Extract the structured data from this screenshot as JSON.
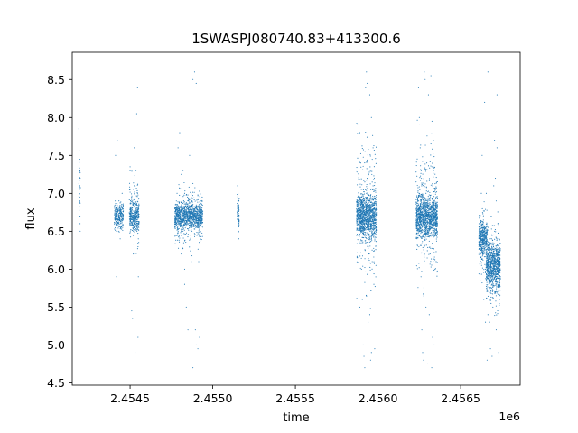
{
  "chart_data": {
    "type": "scatter",
    "title": "1SWASPJ080740.83+413300.6",
    "xlabel": "time",
    "ylabel": "flux",
    "x_offset_label": "1e6",
    "xlim": [
      2454150,
      2456860
    ],
    "ylim": [
      4.47,
      8.86
    ],
    "grid": false,
    "marker_color": "#1f77b4",
    "xticks": [
      {
        "value": 2454500,
        "label": "2.4545"
      },
      {
        "value": 2455000,
        "label": "2.4550"
      },
      {
        "value": 2455500,
        "label": "2.4555"
      },
      {
        "value": 2456000,
        "label": "2.4560"
      },
      {
        "value": 2456500,
        "label": "2.4565"
      }
    ],
    "yticks": [
      {
        "value": 4.5,
        "label": "4.5"
      },
      {
        "value": 5.0,
        "label": "5.0"
      },
      {
        "value": 5.5,
        "label": "5.5"
      },
      {
        "value": 6.0,
        "label": "6.0"
      },
      {
        "value": 6.5,
        "label": "6.5"
      },
      {
        "value": 7.0,
        "label": "7.0"
      },
      {
        "value": 7.5,
        "label": "7.5"
      },
      {
        "value": 8.0,
        "label": "8.0"
      },
      {
        "value": 8.5,
        "label": "8.5"
      }
    ],
    "series": [
      {
        "points": [
          [
            2454190,
            7.85
          ],
          [
            2454195,
            7.45
          ],
          [
            2454195,
            7.3
          ],
          [
            2454196,
            7.1
          ],
          [
            2454196,
            6.9
          ],
          [
            2454197,
            6.7
          ],
          [
            2454197,
            6.6
          ],
          [
            2454198,
            6.5
          ],
          [
            2454198,
            7.2
          ],
          [
            2454410,
            6.9
          ],
          [
            2454415,
            6.8
          ],
          [
            2454420,
            6.7
          ],
          [
            2454425,
            6.6
          ],
          [
            2454430,
            6.5
          ],
          [
            2454412,
            7.5
          ],
          [
            2454418,
            5.9
          ],
          [
            2454422,
            7.7
          ],
          [
            2454440,
            6.75
          ],
          [
            2454445,
            6.65
          ],
          [
            2454450,
            6.85
          ],
          [
            2454455,
            6.55
          ],
          [
            2454440,
            6.4
          ],
          [
            2454452,
            7.0
          ],
          [
            2454500,
            6.8
          ],
          [
            2454505,
            6.7
          ],
          [
            2454510,
            6.6
          ],
          [
            2454515,
            6.9
          ],
          [
            2454520,
            6.5
          ],
          [
            2454525,
            7.1
          ],
          [
            2454500,
            7.35
          ],
          [
            2454520,
            6.2
          ],
          [
            2454510,
            5.45
          ],
          [
            2454515,
            5.35
          ],
          [
            2454525,
            7.6
          ],
          [
            2454530,
            6.75
          ],
          [
            2454535,
            6.85
          ],
          [
            2454540,
            6.65
          ],
          [
            2454545,
            7.0
          ],
          [
            2454550,
            6.4
          ],
          [
            2454535,
            7.3
          ],
          [
            2454540,
            8.05
          ],
          [
            2454545,
            8.4
          ],
          [
            2454550,
            5.9
          ],
          [
            2454548,
            5.1
          ],
          [
            2454530,
            4.9
          ],
          [
            2454780,
            6.9
          ],
          [
            2454790,
            6.7
          ],
          [
            2454800,
            6.6
          ],
          [
            2454810,
            6.8
          ],
          [
            2454820,
            6.5
          ],
          [
            2454830,
            7.0
          ],
          [
            2454840,
            6.75
          ],
          [
            2454850,
            6.85
          ],
          [
            2454860,
            6.55
          ],
          [
            2454870,
            6.95
          ],
          [
            2454880,
            6.65
          ],
          [
            2454890,
            6.7
          ],
          [
            2454900,
            6.8
          ],
          [
            2454910,
            6.6
          ],
          [
            2454920,
            6.75
          ],
          [
            2454930,
            6.9
          ],
          [
            2454790,
            7.6
          ],
          [
            2454800,
            7.8
          ],
          [
            2454810,
            6.2
          ],
          [
            2454820,
            7.3
          ],
          [
            2454830,
            6.0
          ],
          [
            2454840,
            5.5
          ],
          [
            2454850,
            5.2
          ],
          [
            2454860,
            7.5
          ],
          [
            2454870,
            6.1
          ],
          [
            2454880,
            8.5
          ],
          [
            2454890,
            8.6
          ],
          [
            2454900,
            8.45
          ],
          [
            2454880,
            4.7
          ],
          [
            2454900,
            5.0
          ],
          [
            2454910,
            4.95
          ],
          [
            2454920,
            5.1
          ],
          [
            2454895,
            5.2
          ],
          [
            2454810,
            7.25
          ],
          [
            2454830,
            5.8
          ],
          [
            2454915,
            6.1
          ],
          [
            2455150,
            7.1
          ],
          [
            2455152,
            6.9
          ],
          [
            2455154,
            6.7
          ],
          [
            2455156,
            6.5
          ],
          [
            2455158,
            6.4
          ],
          [
            2455151,
            6.8
          ],
          [
            2455155,
            6.6
          ],
          [
            2455153,
            7.0
          ],
          [
            2455880,
            6.9
          ],
          [
            2455890,
            6.7
          ],
          [
            2455900,
            6.5
          ],
          [
            2455910,
            6.8
          ],
          [
            2455920,
            6.6
          ],
          [
            2455930,
            7.0
          ],
          [
            2455940,
            6.75
          ],
          [
            2455950,
            6.85
          ],
          [
            2455960,
            6.55
          ],
          [
            2455970,
            7.1
          ],
          [
            2455980,
            6.65
          ],
          [
            2455885,
            8.1
          ],
          [
            2455890,
            7.8
          ],
          [
            2455895,
            7.4
          ],
          [
            2455900,
            6.0
          ],
          [
            2455905,
            5.6
          ],
          [
            2455910,
            5.0
          ],
          [
            2455915,
            4.85
          ],
          [
            2455920,
            4.7
          ],
          [
            2455925,
            8.4
          ],
          [
            2455930,
            8.6
          ],
          [
            2455935,
            8.45
          ],
          [
            2455940,
            5.3
          ],
          [
            2455945,
            6.2
          ],
          [
            2455950,
            5.4
          ],
          [
            2455955,
            4.8
          ],
          [
            2455960,
            8.0
          ],
          [
            2455965,
            6.1
          ],
          [
            2455970,
            7.6
          ],
          [
            2455975,
            5.8
          ],
          [
            2455980,
            4.95
          ],
          [
            2455890,
            5.5
          ],
          [
            2455950,
            8.3
          ],
          [
            2455960,
            4.9
          ],
          [
            2456240,
            6.9
          ],
          [
            2456250,
            6.7
          ],
          [
            2456260,
            6.5
          ],
          [
            2456270,
            6.8
          ],
          [
            2456280,
            6.6
          ],
          [
            2456290,
            7.0
          ],
          [
            2456300,
            6.75
          ],
          [
            2456310,
            6.85
          ],
          [
            2456320,
            6.55
          ],
          [
            2456330,
            7.1
          ],
          [
            2456340,
            6.65
          ],
          [
            2456350,
            6.8
          ],
          [
            2456245,
            8.4
          ],
          [
            2456250,
            8.0
          ],
          [
            2456255,
            7.6
          ],
          [
            2456260,
            5.9
          ],
          [
            2456265,
            5.2
          ],
          [
            2456270,
            4.9
          ],
          [
            2456275,
            4.8
          ],
          [
            2456280,
            8.6
          ],
          [
            2456285,
            8.5
          ],
          [
            2456290,
            5.5
          ],
          [
            2456295,
            7.4
          ],
          [
            2456300,
            4.75
          ],
          [
            2456305,
            8.3
          ],
          [
            2456310,
            5.4
          ],
          [
            2456315,
            6.2
          ],
          [
            2456320,
            8.55
          ],
          [
            2456325,
            4.7
          ],
          [
            2456330,
            5.1
          ],
          [
            2456335,
            7.7
          ],
          [
            2456340,
            5.0
          ],
          [
            2456345,
            6.0
          ],
          [
            2456620,
            6.5
          ],
          [
            2456625,
            6.4
          ],
          [
            2456630,
            6.3
          ],
          [
            2456635,
            6.6
          ],
          [
            2456640,
            6.2
          ],
          [
            2456645,
            6.45
          ],
          [
            2456650,
            6.0
          ],
          [
            2456655,
            6.35
          ],
          [
            2456625,
            7.0
          ],
          [
            2456630,
            7.5
          ],
          [
            2456640,
            5.6
          ],
          [
            2456645,
            8.2
          ],
          [
            2456650,
            5.3
          ],
          [
            2456655,
            7.0
          ],
          [
            2456660,
            4.8
          ],
          [
            2456665,
            8.6
          ],
          [
            2456660,
            6.0
          ],
          [
            2456670,
            5.8
          ],
          [
            2456680,
            6.1
          ],
          [
            2456690,
            5.9
          ],
          [
            2456700,
            6.2
          ],
          [
            2456710,
            5.7
          ],
          [
            2456720,
            6.0
          ],
          [
            2456730,
            6.1
          ],
          [
            2456665,
            5.4
          ],
          [
            2456675,
            5.3
          ],
          [
            2456685,
            6.7
          ],
          [
            2456695,
            5.5
          ],
          [
            2456705,
            6.5
          ],
          [
            2456715,
            5.2
          ],
          [
            2456725,
            6.6
          ],
          [
            2456735,
            5.6
          ],
          [
            2456680,
            4.95
          ],
          [
            2456690,
            4.85
          ],
          [
            2456700,
            7.1
          ],
          [
            2456710,
            7.2
          ],
          [
            2456720,
            7.6
          ],
          [
            2456730,
            4.9
          ],
          [
            2456715,
            6.9
          ],
          [
            2456705,
            7.7
          ],
          [
            2456720,
            8.3
          ],
          [
            2456730,
            6.4
          ]
        ]
      }
    ],
    "point_clusters": [
      {
        "x": [
          2454189,
          2454200
        ],
        "y": [
          6.4,
          7.8
        ],
        "n": 20
      },
      {
        "x": [
          2454405,
          2454460
        ],
        "y": [
          6.45,
          6.95
        ],
        "n": 260
      },
      {
        "x": [
          2454495,
          2454555
        ],
        "y": [
          6.45,
          6.95
        ],
        "n": 300
      },
      {
        "x": [
          2454495,
          2454555
        ],
        "y": [
          5.9,
          7.5
        ],
        "n": 80
      },
      {
        "x": [
          2454770,
          2454940
        ],
        "y": [
          6.45,
          6.95
        ],
        "n": 900
      },
      {
        "x": [
          2454770,
          2454940
        ],
        "y": [
          6.1,
          7.3
        ],
        "n": 250
      },
      {
        "x": [
          2455148,
          2455160
        ],
        "y": [
          6.4,
          7.05
        ],
        "n": 80
      },
      {
        "x": [
          2455870,
          2455990
        ],
        "y": [
          6.3,
          7.1
        ],
        "n": 1000
      },
      {
        "x": [
          2455870,
          2455990
        ],
        "y": [
          5.4,
          8.1
        ],
        "n": 300
      },
      {
        "x": [
          2456230,
          2456360
        ],
        "y": [
          6.3,
          7.1
        ],
        "n": 1100
      },
      {
        "x": [
          2456230,
          2456360
        ],
        "y": [
          5.4,
          8.1
        ],
        "n": 300
      },
      {
        "x": [
          2456610,
          2456660
        ],
        "y": [
          6.1,
          6.7
        ],
        "n": 350
      },
      {
        "x": [
          2456610,
          2456660
        ],
        "y": [
          5.6,
          7.1
        ],
        "n": 100
      },
      {
        "x": [
          2456655,
          2456740
        ],
        "y": [
          5.6,
          6.5
        ],
        "n": 700
      },
      {
        "x": [
          2456655,
          2456740
        ],
        "y": [
          5.2,
          6.9
        ],
        "n": 200
      }
    ]
  }
}
